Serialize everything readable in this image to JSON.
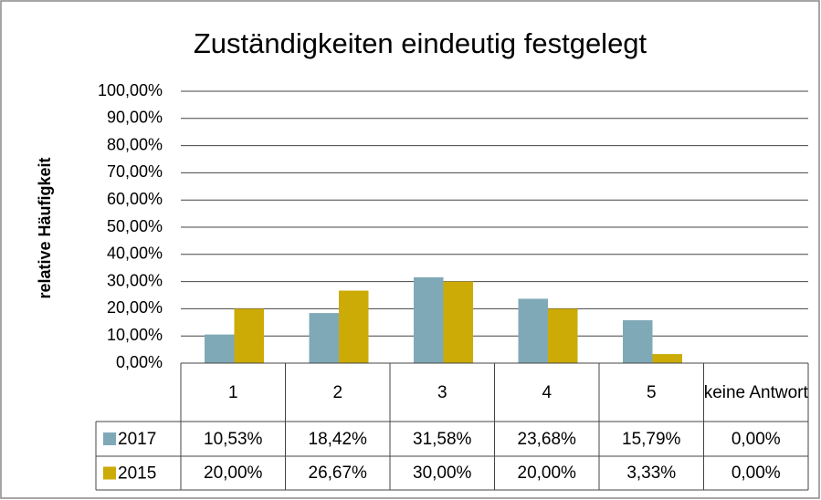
{
  "chart_data": {
    "type": "bar",
    "title": "Zuständigkeiten eindeutig festgelegt",
    "y_label": "relative Häufigkeit",
    "categories": [
      "1",
      "2",
      "3",
      "4",
      "5",
      "keine Antwort"
    ],
    "series": [
      {
        "name": "2017",
        "color": "#80a9b7",
        "values": [
          10.53,
          18.42,
          31.58,
          23.68,
          15.79,
          0
        ],
        "value_labels": [
          "10,53%",
          "18,42%",
          "31,58%",
          "23,68%",
          "15,79%",
          "0,00%"
        ]
      },
      {
        "name": "2015",
        "color": "#cdab06",
        "values": [
          20,
          26.67,
          30,
          20,
          3.33,
          0
        ],
        "value_labels": [
          "20,00%",
          "26,67%",
          "30,00%",
          "20,00%",
          "3,33%",
          "0,00%"
        ]
      }
    ],
    "ylim": [
      0,
      100
    ],
    "yticks": [
      {
        "value": 0,
        "label": "0,00%"
      },
      {
        "value": 10,
        "label": "10,00%"
      },
      {
        "value": 20,
        "label": "20,00%"
      },
      {
        "value": 30,
        "label": "30,00%"
      },
      {
        "value": 40,
        "label": "40,00%"
      },
      {
        "value": 50,
        "label": "50,00%"
      },
      {
        "value": 60,
        "label": "60,00%"
      },
      {
        "value": 70,
        "label": "70,00%"
      },
      {
        "value": 80,
        "label": "80,00%"
      },
      {
        "value": 90,
        "label": "90,00%"
      },
      {
        "value": 100,
        "label": "100,00%"
      }
    ],
    "grid": true
  }
}
